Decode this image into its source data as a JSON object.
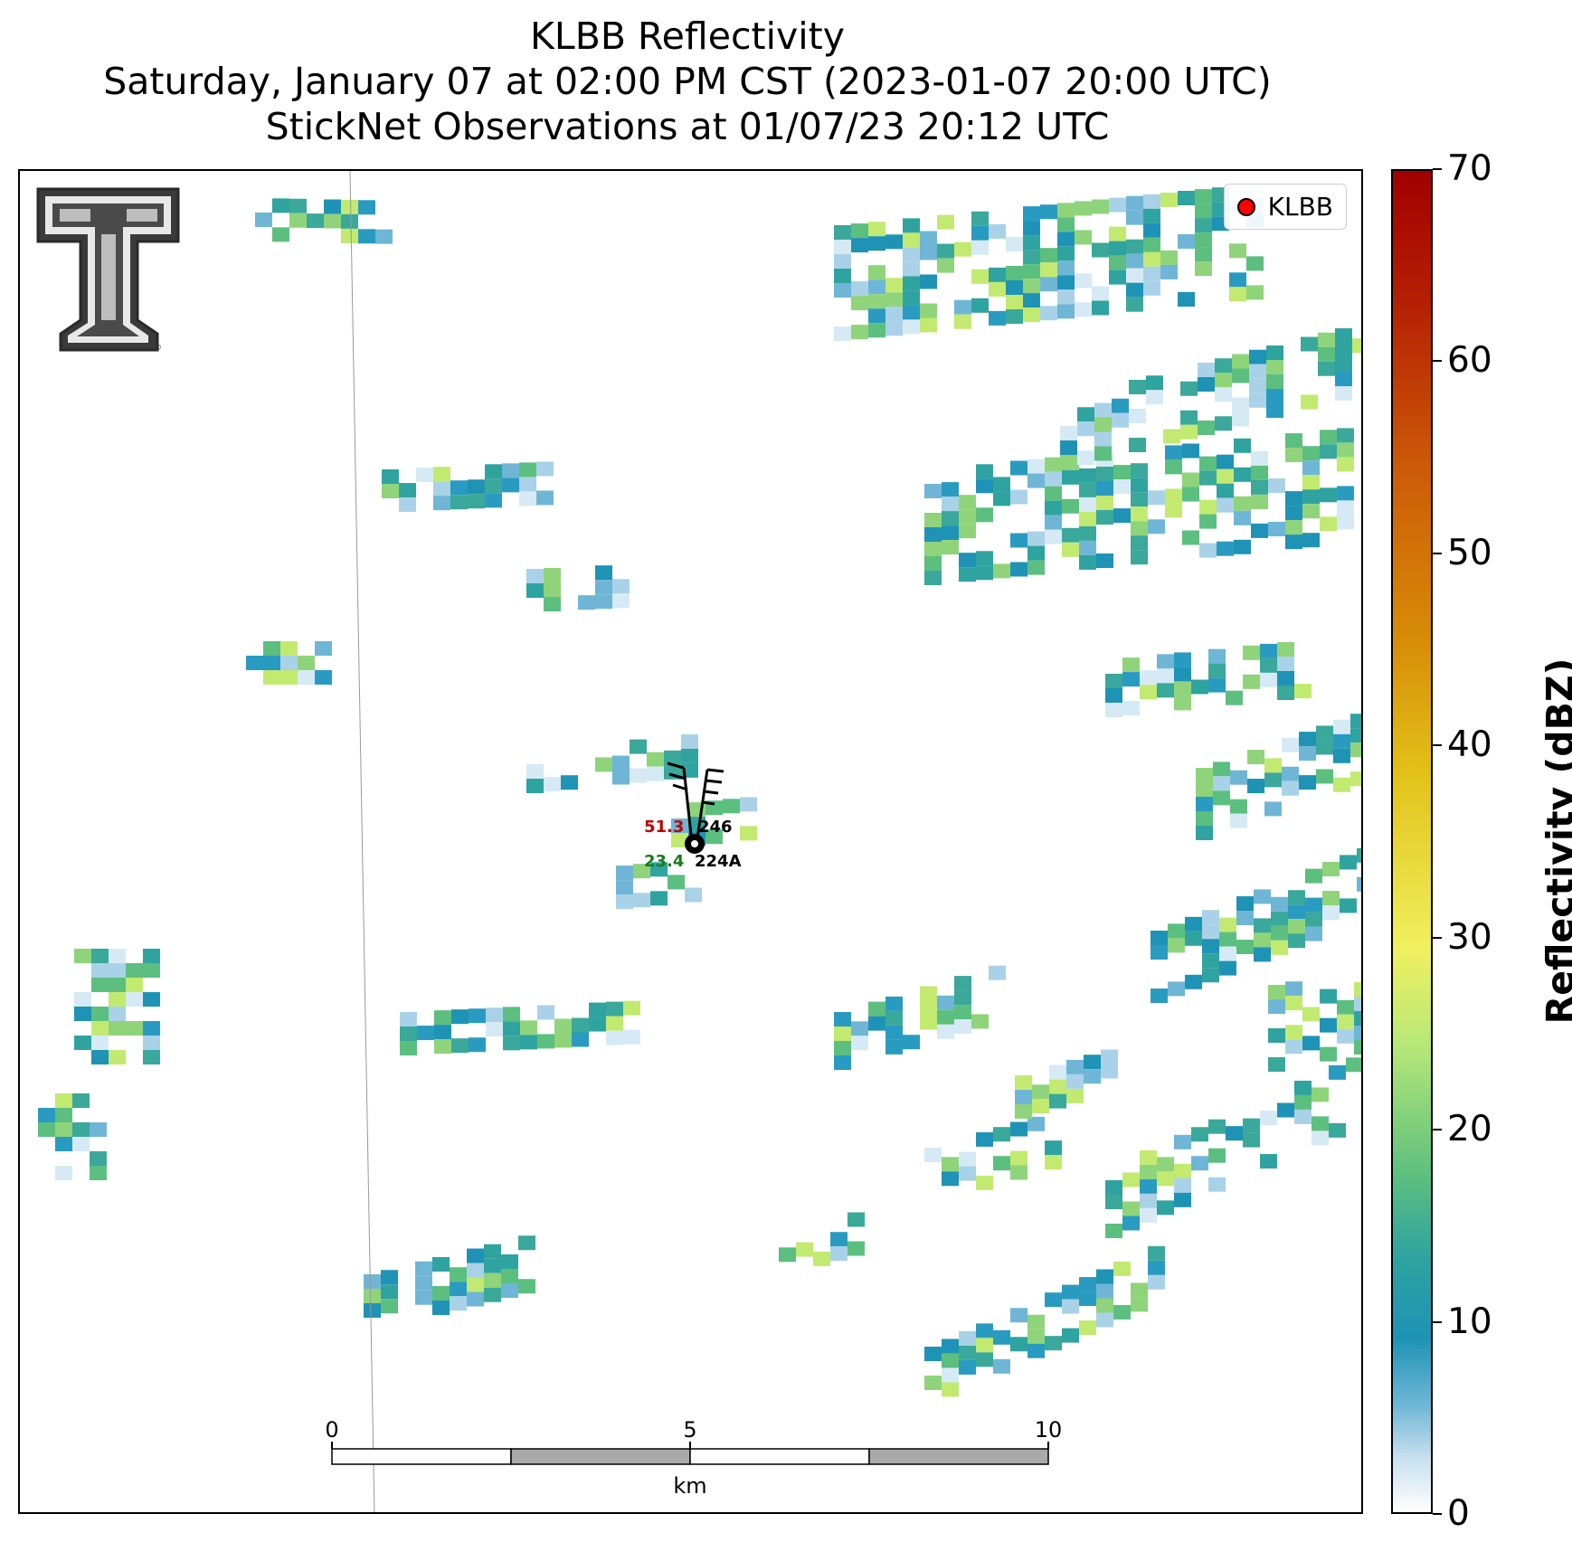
{
  "title": {
    "line1": "KLBB Reflectivity",
    "line2": "Saturday, January 07 at 02:00 PM CST (2023-01-07 20:00 UTC)",
    "line3": "StickNet Observations at 01/07/23 20:12 UTC"
  },
  "legend": {
    "label": "KLBB",
    "marker_color": "#ff0000"
  },
  "colorbar": {
    "label": "Reflectivity (dBZ)",
    "min": 0,
    "max": 70,
    "ticks": [
      "0",
      "10",
      "20",
      "30",
      "40",
      "50",
      "60",
      "70"
    ]
  },
  "scalebar": {
    "tick_labels": [
      "0",
      "5",
      "10"
    ],
    "unit": "km"
  },
  "stations": [
    {
      "id": "246",
      "temperature": "51.3",
      "temperature_color": "#c00000"
    },
    {
      "id": "224A",
      "dewpoint": "23.4",
      "dewpoint_color": "#1a7a1a"
    }
  ],
  "logo": {
    "name": "Texas Tech double-T",
    "mark": "®"
  }
}
